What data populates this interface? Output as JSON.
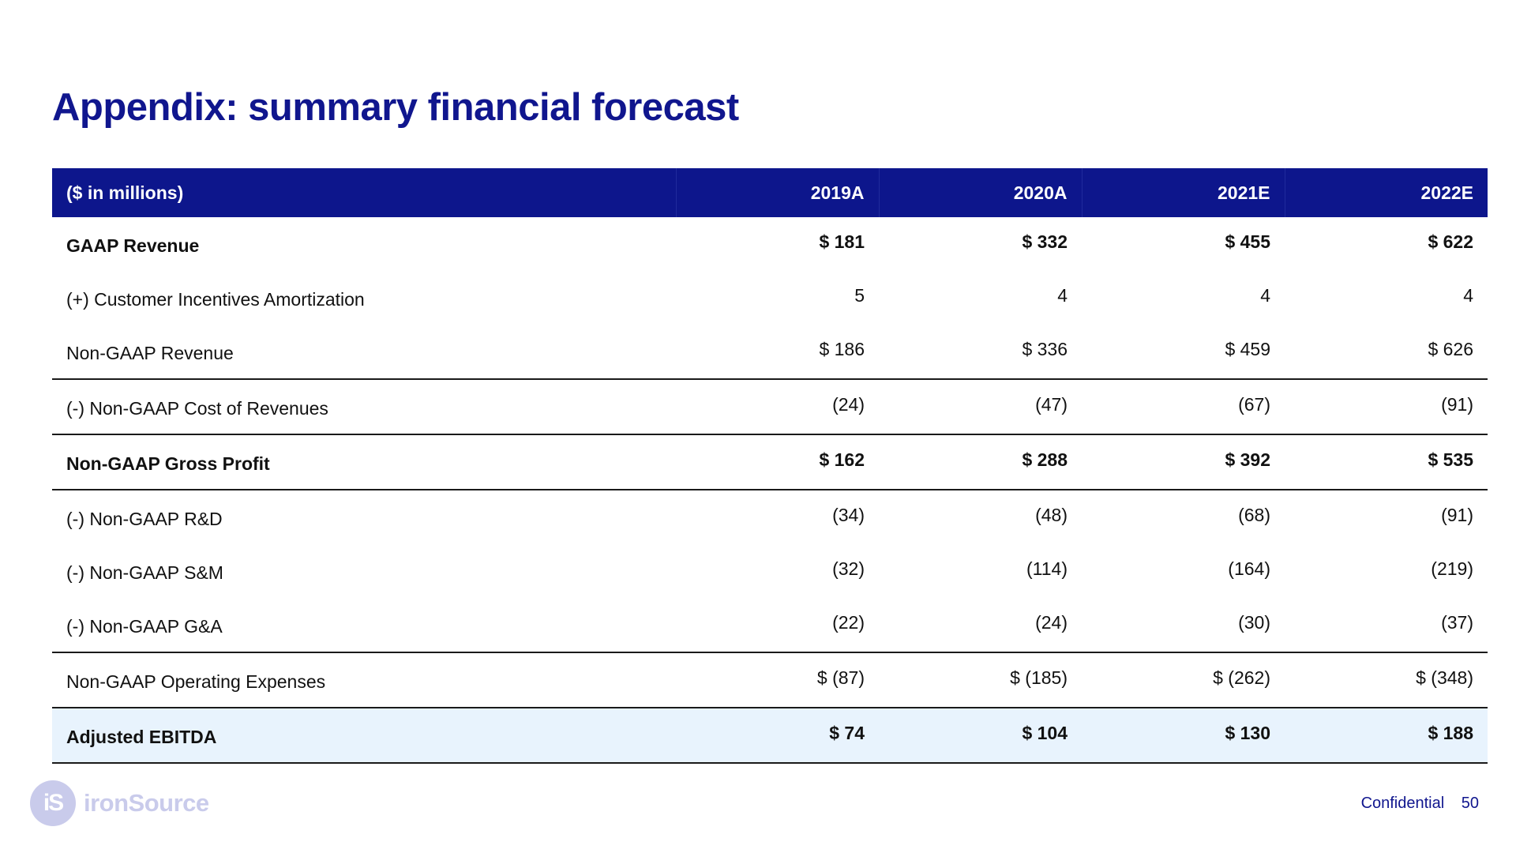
{
  "title": "Appendix: summary financial forecast",
  "table": {
    "header": {
      "label": "($ in millions)",
      "years": [
        "2019A",
        "2020A",
        "2021E",
        "2022E"
      ]
    },
    "rows": [
      {
        "label": "GAAP Revenue",
        "values": [
          "$ 181",
          "$ 332",
          "$ 455",
          "$ 622"
        ],
        "bold": true,
        "separator": false,
        "highlight": false
      },
      {
        "label": "(+) Customer Incentives Amortization",
        "values": [
          "5",
          "4",
          "4",
          "4"
        ],
        "bold": false,
        "separator": false,
        "highlight": false
      },
      {
        "label": "Non-GAAP Revenue",
        "values": [
          "$ 186",
          "$ 336",
          "$ 459",
          "$ 626"
        ],
        "bold": false,
        "separator": true,
        "highlight": false
      },
      {
        "label": "(-) Non-GAAP Cost of Revenues",
        "values": [
          "(24)",
          "(47)",
          "(67)",
          "(91)"
        ],
        "bold": false,
        "separator": true,
        "highlight": false
      },
      {
        "label": "Non-GAAP Gross Profit",
        "values": [
          "$ 162",
          "$ 288",
          "$ 392",
          "$ 535"
        ],
        "bold": true,
        "separator": true,
        "highlight": false
      },
      {
        "label": "(-) Non-GAAP R&D",
        "values": [
          "(34)",
          "(48)",
          "(68)",
          "(91)"
        ],
        "bold": false,
        "separator": false,
        "highlight": false
      },
      {
        "label": "(-) Non-GAAP S&M",
        "values": [
          "(32)",
          "(114)",
          "(164)",
          "(219)"
        ],
        "bold": false,
        "separator": false,
        "highlight": false
      },
      {
        "label": "(-) Non-GAAP G&A",
        "values": [
          "(22)",
          "(24)",
          "(30)",
          "(37)"
        ],
        "bold": false,
        "separator": true,
        "highlight": false
      },
      {
        "label": "Non-GAAP Operating Expenses",
        "values": [
          "$ (87)",
          "$ (185)",
          "$ (262)",
          "$ (348)"
        ],
        "bold": false,
        "separator": true,
        "highlight": false
      },
      {
        "label": "Adjusted EBITDA",
        "values": [
          "$ 74",
          "$ 104",
          "$ 130",
          "$ 188"
        ],
        "bold": true,
        "separator": true,
        "highlight": true
      }
    ]
  },
  "logo": {
    "mark": "iS",
    "name": "ironSource"
  },
  "footer": {
    "confidential": "Confidential",
    "page": "50"
  },
  "colors": {
    "brand_navy": "#10168e",
    "header_bg": "#0d168c",
    "highlight_bg": "#e8f3fd",
    "logo_lavender": "#c9cbeb"
  }
}
